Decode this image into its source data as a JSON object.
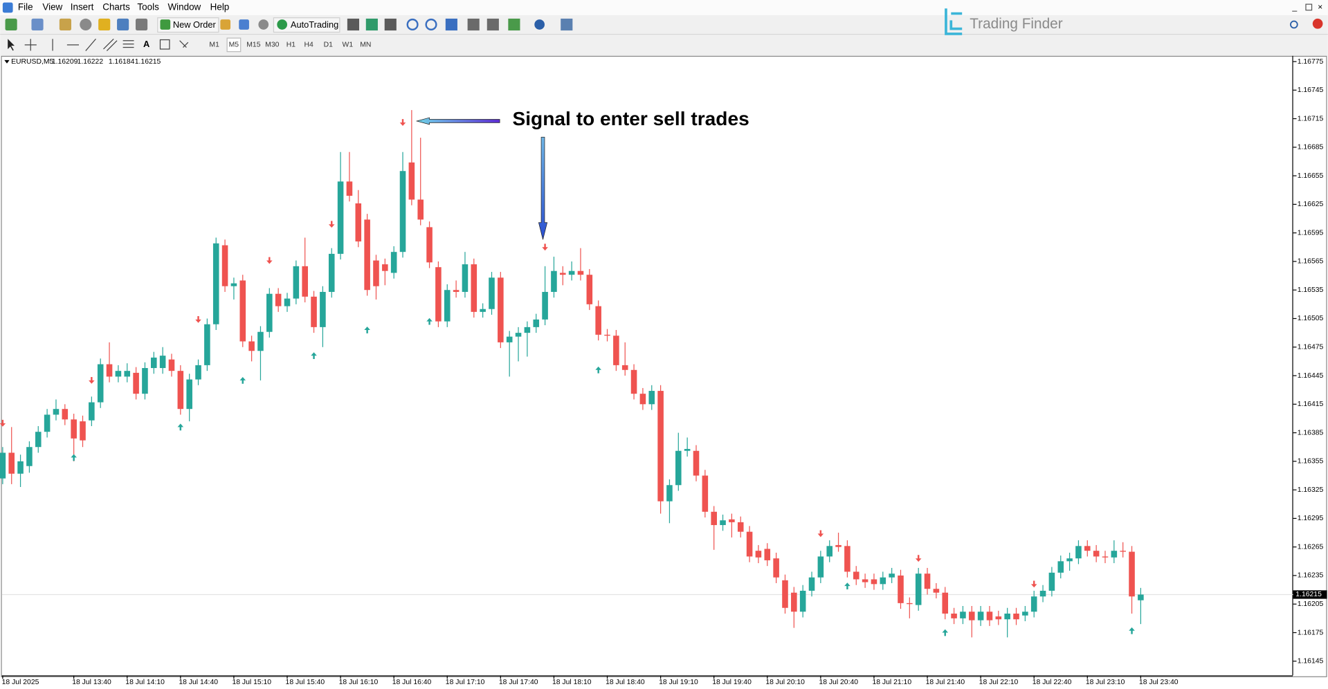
{
  "menu": [
    "File",
    "View",
    "Insert",
    "Charts",
    "Tools",
    "Window",
    "Help"
  ],
  "toolbar": {
    "new_order": "New Order",
    "auto_trading": "AutoTrading"
  },
  "timeframes": [
    "M1",
    "M5",
    "M15",
    "M30",
    "H1",
    "H4",
    "D1",
    "W1",
    "MN"
  ],
  "logo": "Trading Finder",
  "chart_data": {
    "type": "candlestick",
    "title": "EURUSD,M5",
    "annotation": "Signal to enter sell trades",
    "colors": {
      "up": "#26a69a",
      "down": "#ef5350"
    },
    "ylim": [
      1.1613,
      1.16781
    ],
    "yticks": [
      1.16775,
      1.16745,
      1.16715,
      1.16685,
      1.16655,
      1.16625,
      1.16595,
      1.16565,
      1.16535,
      1.16505,
      1.16475,
      1.16445,
      1.16415,
      1.16385,
      1.16355,
      1.16325,
      1.16295,
      1.16265,
      1.16235,
      1.16205,
      1.16175,
      1.16145
    ],
    "xticks": [
      {
        "value": 0,
        "label": "18 Jul 2025"
      },
      {
        "value": 8,
        "label": "18 Jul 13:40"
      },
      {
        "value": 14,
        "label": "18 Jul 14:10"
      },
      {
        "value": 20,
        "label": "18 Jul 14:40"
      },
      {
        "value": 26,
        "label": "18 Jul 15:10"
      },
      {
        "value": 32,
        "label": "18 Jul 15:40"
      },
      {
        "value": 38,
        "label": "18 Jul 16:10"
      },
      {
        "value": 44,
        "label": "18 Jul 16:40"
      },
      {
        "value": 50,
        "label": "18 Jul 17:10"
      },
      {
        "value": 56,
        "label": "18 Jul 17:40"
      },
      {
        "value": 62,
        "label": "18 Jul 18:10"
      },
      {
        "value": 68,
        "label": "18 Jul 18:40"
      },
      {
        "value": 74,
        "label": "18 Jul 19:10"
      },
      {
        "value": 80,
        "label": "18 Jul 19:40"
      },
      {
        "value": 86,
        "label": "18 Jul 20:10"
      },
      {
        "value": 92,
        "label": "18 Jul 20:40"
      },
      {
        "value": 98,
        "label": "18 Jul 21:10"
      },
      {
        "value": 104,
        "label": "18 Jul 21:40"
      },
      {
        "value": 110,
        "label": "18 Jul 22:10"
      },
      {
        "value": 116,
        "label": "18 Jul 22:40"
      },
      {
        "value": 122,
        "label": "18 Jul 23:10"
      },
      {
        "value": 128,
        "label": "18 Jul 23:40"
      }
    ],
    "sell_signals": [
      [
        0,
        1.16395
      ],
      [
        10,
        1.1644
      ],
      [
        22,
        1.16504
      ],
      [
        30,
        1.16566
      ],
      [
        37,
        1.16604
      ],
      [
        45,
        1.16711
      ],
      [
        61,
        1.1658
      ],
      [
        92,
        1.16279
      ],
      [
        103,
        1.16253
      ],
      [
        116,
        1.16226
      ]
    ],
    "buy_signals": [
      [
        8,
        1.16359
      ],
      [
        20,
        1.16391
      ],
      [
        27,
        1.1644
      ],
      [
        35,
        1.16466
      ],
      [
        41,
        1.16493
      ],
      [
        48,
        1.16502
      ],
      [
        67,
        1.16451
      ],
      [
        95,
        1.16224
      ],
      [
        106,
        1.16175
      ],
      [
        127,
        1.16177
      ]
    ],
    "candles": [
      [
        1.16337,
        1.1637,
        1.16331,
        1.16364
      ],
      [
        1.16364,
        1.16391,
        1.16331,
        1.16342
      ],
      [
        1.16342,
        1.16362,
        1.16328,
        1.16355
      ],
      [
        1.1635,
        1.16376,
        1.16343,
        1.1637
      ],
      [
        1.1637,
        1.16392,
        1.16364,
        1.16386
      ],
      [
        1.16386,
        1.1641,
        1.1638,
        1.16404
      ],
      [
        1.16404,
        1.1642,
        1.16398,
        1.1641
      ],
      [
        1.1641,
        1.16415,
        1.16393,
        1.16399
      ],
      [
        1.16399,
        1.16405,
        1.16355,
        1.16379
      ],
      [
        1.16397,
        1.16403,
        1.1637,
        1.16377
      ],
      [
        1.16398,
        1.16423,
        1.16392,
        1.16417
      ],
      [
        1.16417,
        1.16463,
        1.16411,
        1.16457
      ],
      [
        1.16457,
        1.1648,
        1.16438,
        1.16444
      ],
      [
        1.16444,
        1.16456,
        1.16438,
        1.1645
      ],
      [
        1.16444,
        1.16458,
        1.16438,
        1.1645
      ],
      [
        1.16448,
        1.16454,
        1.1642,
        1.16426
      ],
      [
        1.16426,
        1.16459,
        1.1642,
        1.16453
      ],
      [
        1.16453,
        1.1647,
        1.16447,
        1.16464
      ],
      [
        1.16453,
        1.16475,
        1.16447,
        1.16466
      ],
      [
        1.16462,
        1.16468,
        1.16444,
        1.1645
      ],
      [
        1.1645,
        1.16456,
        1.16404,
        1.1641
      ],
      [
        1.1641,
        1.16447,
        1.16397,
        1.16441
      ],
      [
        1.16441,
        1.16462,
        1.16435,
        1.16456
      ],
      [
        1.16456,
        1.16505,
        1.1645,
        1.16499
      ],
      [
        1.16499,
        1.1659,
        1.16493,
        1.16584
      ],
      [
        1.16582,
        1.16588,
        1.16533,
        1.16539
      ],
      [
        1.16539,
        1.16548,
        1.16525,
        1.16542
      ],
      [
        1.16545,
        1.16551,
        1.16475,
        1.16481
      ],
      [
        1.16481,
        1.16487,
        1.1646,
        1.16471
      ],
      [
        1.16471,
        1.16497,
        1.1644,
        1.16491
      ],
      [
        1.16491,
        1.16537,
        1.16485,
        1.16531
      ],
      [
        1.16531,
        1.16537,
        1.16512,
        1.16518
      ],
      [
        1.16518,
        1.16532,
        1.16512,
        1.16526
      ],
      [
        1.16526,
        1.16566,
        1.1652,
        1.1656
      ],
      [
        1.1656,
        1.1659,
        1.16522,
        1.16528
      ],
      [
        1.16528,
        1.16534,
        1.1649,
        1.16496
      ],
      [
        1.16496,
        1.16539,
        1.16475,
        1.16533
      ],
      [
        1.16533,
        1.16579,
        1.16527,
        1.16573
      ],
      [
        1.16573,
        1.1668,
        1.16567,
        1.16649
      ],
      [
        1.16649,
        1.1668,
        1.16628,
        1.16634
      ],
      [
        1.16626,
        1.1664,
        1.1658,
        1.16586
      ],
      [
        1.16609,
        1.16615,
        1.16529,
        1.16535
      ],
      [
        1.16566,
        1.16572,
        1.16525,
        1.16539
      ],
      [
        1.16562,
        1.16568,
        1.1654,
        1.16555
      ],
      [
        1.16553,
        1.16581,
        1.16547,
        1.16575
      ],
      [
        1.16575,
        1.1668,
        1.16569,
        1.1666
      ],
      [
        1.16669,
        1.16724,
        1.16624,
        1.1663
      ],
      [
        1.1663,
        1.16695,
        1.16603,
        1.16609
      ],
      [
        1.16601,
        1.16607,
        1.16558,
        1.16564
      ],
      [
        1.16559,
        1.16565,
        1.16496,
        1.16502
      ],
      [
        1.16502,
        1.16541,
        1.16496,
        1.16535
      ],
      [
        1.16535,
        1.16545,
        1.16527,
        1.16533
      ],
      [
        1.16533,
        1.16575,
        1.16527,
        1.16562
      ],
      [
        1.16562,
        1.16568,
        1.16506,
        1.16512
      ],
      [
        1.16512,
        1.16521,
        1.16506,
        1.16515
      ],
      [
        1.16515,
        1.16554,
        1.16509,
        1.16548
      ],
      [
        1.16548,
        1.16554,
        1.16474,
        1.1648
      ],
      [
        1.1648,
        1.16492,
        1.16444,
        1.16486
      ],
      [
        1.16486,
        1.16496,
        1.1646,
        1.1649
      ],
      [
        1.1649,
        1.16502,
        1.16465,
        1.16496
      ],
      [
        1.16496,
        1.1651,
        1.1649,
        1.16504
      ],
      [
        1.16504,
        1.1656,
        1.16498,
        1.16533
      ],
      [
        1.16533,
        1.1657,
        1.16527,
        1.16555
      ],
      [
        1.16553,
        1.1656,
        1.1654,
        1.16551
      ],
      [
        1.16551,
        1.16565,
        1.16545,
        1.16555
      ],
      [
        1.16555,
        1.16579,
        1.16545,
        1.16551
      ],
      [
        1.16551,
        1.16557,
        1.16514,
        1.1652
      ],
      [
        1.16518,
        1.16524,
        1.16482,
        1.16488
      ],
      [
        1.16488,
        1.16494,
        1.16481,
        1.16487
      ],
      [
        1.16487,
        1.16493,
        1.1645,
        1.16456
      ],
      [
        1.16456,
        1.1648,
        1.16445,
        1.16451
      ],
      [
        1.16451,
        1.16457,
        1.1642,
        1.16426
      ],
      [
        1.16426,
        1.16432,
        1.16409,
        1.16415
      ],
      [
        1.16415,
        1.16435,
        1.16409,
        1.16429
      ],
      [
        1.16429,
        1.16435,
        1.163,
        1.16313
      ],
      [
        1.16313,
        1.16336,
        1.1629,
        1.1633
      ],
      [
        1.1633,
        1.16385,
        1.16324,
        1.16366
      ],
      [
        1.16366,
        1.1638,
        1.1636,
        1.16368
      ],
      [
        1.16366,
        1.16372,
        1.16334,
        1.1634
      ],
      [
        1.1634,
        1.16346,
        1.16296,
        1.16302
      ],
      [
        1.16302,
        1.16308,
        1.16262,
        1.16288
      ],
      [
        1.16288,
        1.16299,
        1.16282,
        1.16293
      ],
      [
        1.16294,
        1.163,
        1.16275,
        1.16291
      ],
      [
        1.16291,
        1.16297,
        1.16275,
        1.16281
      ],
      [
        1.16281,
        1.16287,
        1.16249,
        1.16255
      ],
      [
        1.16261,
        1.16267,
        1.16248,
        1.16254
      ],
      [
        1.16263,
        1.16269,
        1.16245,
        1.16251
      ],
      [
        1.16253,
        1.16259,
        1.16227,
        1.16233
      ],
      [
        1.1623,
        1.16236,
        1.16195,
        1.16201
      ],
      [
        1.16217,
        1.16223,
        1.1618,
        1.16197
      ],
      [
        1.16197,
        1.16225,
        1.16191,
        1.16219
      ],
      [
        1.16219,
        1.16239,
        1.16213,
        1.16233
      ],
      [
        1.16233,
        1.16261,
        1.16227,
        1.16255
      ],
      [
        1.16255,
        1.16272,
        1.16249,
        1.16266
      ],
      [
        1.16267,
        1.1628,
        1.1626,
        1.16265
      ],
      [
        1.16266,
        1.16272,
        1.16233,
        1.16239
      ],
      [
        1.16239,
        1.16245,
        1.16225,
        1.16231
      ],
      [
        1.16231,
        1.16237,
        1.16222,
        1.16228
      ],
      [
        1.16231,
        1.16237,
        1.1622,
        1.16226
      ],
      [
        1.16226,
        1.16239,
        1.1622,
        1.16233
      ],
      [
        1.16233,
        1.16243,
        1.16227,
        1.16237
      ],
      [
        1.16235,
        1.16241,
        1.162,
        1.16206
      ],
      [
        1.16206,
        1.16212,
        1.1619,
        1.16205
      ],
      [
        1.16204,
        1.16243,
        1.16198,
        1.16237
      ],
      [
        1.16237,
        1.16243,
        1.16215,
        1.16221
      ],
      [
        1.16221,
        1.16227,
        1.16211,
        1.16217
      ],
      [
        1.16217,
        1.16223,
        1.16189,
        1.16195
      ],
      [
        1.16195,
        1.16201,
        1.16184,
        1.1619
      ],
      [
        1.1619,
        1.16203,
        1.16184,
        1.16197
      ],
      [
        1.16197,
        1.16203,
        1.1617,
        1.16188
      ],
      [
        1.16188,
        1.16203,
        1.16182,
        1.16197
      ],
      [
        1.16197,
        1.16203,
        1.16182,
        1.16188
      ],
      [
        1.16192,
        1.16198,
        1.16183,
        1.16189
      ],
      [
        1.16189,
        1.16201,
        1.1617,
        1.16195
      ],
      [
        1.16195,
        1.16201,
        1.16183,
        1.16189
      ],
      [
        1.16193,
        1.16203,
        1.16187,
        1.16197
      ],
      [
        1.16197,
        1.16219,
        1.16191,
        1.16213
      ],
      [
        1.16213,
        1.16225,
        1.16207,
        1.16219
      ],
      [
        1.16219,
        1.16244,
        1.16213,
        1.16238
      ],
      [
        1.16238,
        1.16256,
        1.16232,
        1.1625
      ],
      [
        1.1625,
        1.16259,
        1.1624,
        1.16253
      ],
      [
        1.16253,
        1.16272,
        1.16247,
        1.16266
      ],
      [
        1.16266,
        1.16272,
        1.16255,
        1.16261
      ],
      [
        1.16261,
        1.16267,
        1.16249,
        1.16255
      ],
      [
        1.16255,
        1.16261,
        1.16248,
        1.16254
      ],
      [
        1.16254,
        1.16272,
        1.16248,
        1.16261
      ],
      [
        1.16261,
        1.1627,
        1.16254,
        1.1626
      ],
      [
        1.1626,
        1.16266,
        1.16195,
        1.16213
      ],
      [
        1.16209,
        1.16222,
        1.16184,
        1.16215
      ]
    ]
  }
}
